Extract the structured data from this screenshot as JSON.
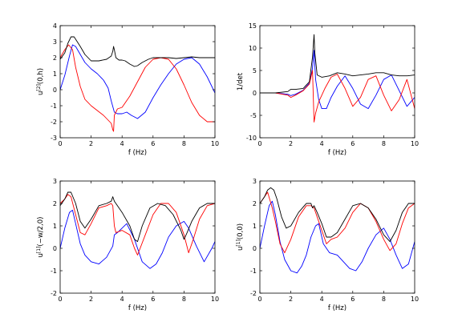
{
  "chart_data": [
    {
      "type": "line",
      "xlabel": "f (Hz)",
      "ylabel": "u",
      "ylabel_sup": "[2]",
      "ylabel_rest": "(0,h)",
      "xlim": [
        0,
        10
      ],
      "ylim": [
        -3,
        4
      ],
      "xticks": [
        "0",
        "2",
        "4",
        "6",
        "8",
        "10"
      ],
      "yticks": [
        "-3",
        "-2",
        "-1",
        "0",
        "1",
        "2",
        "3",
        "4"
      ],
      "grid": false,
      "series": [
        {
          "color": "#0000ff",
          "x": [
            0,
            0.3,
            0.6,
            0.8,
            1.0,
            1.3,
            1.6,
            2.0,
            2.4,
            2.8,
            3.1,
            3.3,
            3.5,
            3.7,
            4.0,
            4.3,
            4.6,
            5.0,
            5.5,
            6.0,
            6.5,
            7.0,
            7.5,
            8.0,
            8.5,
            9.0,
            9.5,
            10.0
          ],
          "y": [
            0,
            0.9,
            2.1,
            2.8,
            2.7,
            2.2,
            1.7,
            1.3,
            1.0,
            0.6,
            0.1,
            -0.7,
            -1.4,
            -1.5,
            -1.5,
            -1.4,
            -1.6,
            -1.8,
            -1.4,
            -0.5,
            0.3,
            1.0,
            1.6,
            1.9,
            2.0,
            1.6,
            0.8,
            -0.2
          ]
        },
        {
          "color": "#ff0000",
          "x": [
            0,
            0.3,
            0.55,
            0.8,
            1.0,
            1.3,
            1.6,
            2.0,
            2.4,
            2.8,
            3.1,
            3.3,
            3.4,
            3.45,
            3.5,
            3.7,
            4.0,
            4.5,
            5.0,
            5.5,
            6.0,
            6.5,
            7.0,
            7.5,
            8.0,
            8.5,
            9.0,
            9.5,
            10.0
          ],
          "y": [
            2.0,
            2.5,
            2.8,
            2.5,
            1.4,
            0.2,
            -0.6,
            -1.0,
            -1.3,
            -1.6,
            -1.9,
            -2.1,
            -2.5,
            -2.6,
            -1.6,
            -1.2,
            -1.1,
            -0.4,
            0.5,
            1.4,
            1.9,
            2.0,
            1.9,
            1.3,
            0.3,
            -0.8,
            -1.6,
            -2.0,
            -2.0
          ]
        },
        {
          "color": "#000000",
          "x": [
            0,
            0.3,
            0.5,
            0.7,
            0.9,
            1.1,
            1.3,
            1.6,
            2.0,
            2.5,
            3.0,
            3.3,
            3.4,
            3.45,
            3.5,
            3.6,
            3.8,
            4.0,
            4.2,
            4.5,
            4.8,
            5.0,
            5.3,
            5.7,
            6.0,
            6.5,
            7.0,
            7.5,
            8.0,
            8.5,
            9.0,
            9.5,
            10.0
          ],
          "y": [
            1.9,
            2.3,
            2.9,
            3.3,
            3.3,
            3.0,
            2.7,
            2.2,
            1.8,
            1.8,
            1.9,
            2.1,
            2.4,
            2.7,
            2.5,
            2.0,
            1.85,
            1.85,
            1.8,
            1.6,
            1.45,
            1.5,
            1.7,
            1.9,
            2.0,
            2.0,
            2.0,
            1.95,
            2.0,
            2.05,
            2.0,
            2.0,
            2.0
          ]
        }
      ]
    },
    {
      "type": "line",
      "xlabel": "f (Hz)",
      "ylabel": "1/det",
      "xlim": [
        0,
        10
      ],
      "ylim": [
        -10,
        15
      ],
      "xticks": [
        "0",
        "2",
        "4",
        "6",
        "8",
        "10"
      ],
      "yticks": [
        "-10",
        "-5",
        "0",
        "5",
        "10",
        "15"
      ],
      "grid": false,
      "series": [
        {
          "color": "#0000ff",
          "x": [
            0,
            1.0,
            1.8,
            2.0,
            2.3,
            2.8,
            3.2,
            3.4,
            3.5,
            3.6,
            3.8,
            4.0,
            4.3,
            4.6,
            5.0,
            5.5,
            6.0,
            6.5,
            7.0,
            7.5,
            8.0,
            8.5,
            9.0,
            9.5,
            10.0
          ],
          "y": [
            0,
            0,
            -0.3,
            -0.6,
            -0.3,
            0.6,
            2.2,
            5.5,
            9.5,
            3.0,
            -1.5,
            -3.5,
            -3.5,
            -1.0,
            1.5,
            3.8,
            1.0,
            -2.5,
            -3.5,
            -0.5,
            3.0,
            4.0,
            0.5,
            -3.0,
            -1.0
          ]
        },
        {
          "color": "#ff0000",
          "x": [
            0,
            1.0,
            1.8,
            2.0,
            2.3,
            2.8,
            3.2,
            3.4,
            3.5,
            3.6,
            3.8,
            4.2,
            4.6,
            5.0,
            5.5,
            6.0,
            6.5,
            7.0,
            7.5,
            8.0,
            8.5,
            9.0,
            9.5,
            10.0
          ],
          "y": [
            0,
            0,
            -0.5,
            -1.0,
            -0.5,
            0.5,
            2.0,
            5.0,
            -6.5,
            -4.5,
            -2.0,
            1.0,
            3.5,
            4.2,
            1.0,
            -3.0,
            -1.0,
            3.0,
            3.8,
            -0.5,
            -4.0,
            -1.5,
            3.0,
            -3.5
          ]
        },
        {
          "color": "#000000",
          "x": [
            0,
            1.0,
            1.8,
            2.0,
            2.3,
            2.8,
            3.2,
            3.4,
            3.5,
            3.55,
            3.7,
            4.0,
            4.5,
            5.0,
            5.5,
            6.0,
            6.5,
            7.0,
            7.5,
            8.0,
            8.5,
            9.0,
            9.5,
            10.0
          ],
          "y": [
            0,
            0,
            0.3,
            0.8,
            0.8,
            1.0,
            2.5,
            8.0,
            13.0,
            9.0,
            4.0,
            3.5,
            3.8,
            4.5,
            4.2,
            3.8,
            4.0,
            4.2,
            4.5,
            4.5,
            4.0,
            3.8,
            3.8,
            4.0
          ]
        }
      ]
    },
    {
      "type": "line",
      "xlabel": "f (Hz)",
      "ylabel": "u",
      "ylabel_sup": "[1]",
      "ylabel_rest": "(−w/2,0)",
      "xlim": [
        0,
        10
      ],
      "ylim": [
        -2,
        3
      ],
      "xticks": [
        "0",
        "2",
        "4",
        "6",
        "8",
        "10"
      ],
      "yticks": [
        "-2",
        "-1",
        "0",
        "1",
        "2",
        "3"
      ],
      "grid": false,
      "series": [
        {
          "color": "#0000ff",
          "x": [
            0,
            0.3,
            0.6,
            0.8,
            1.0,
            1.3,
            1.6,
            2.0,
            2.5,
            3.0,
            3.4,
            3.5,
            3.7,
            4.0,
            4.3,
            4.8,
            5.3,
            5.8,
            6.2,
            6.6,
            7.0,
            7.5,
            8.0,
            8.3,
            8.8,
            9.3,
            9.8,
            10.0
          ],
          "y": [
            0,
            0.9,
            1.6,
            1.7,
            1.1,
            0.2,
            -0.3,
            -0.6,
            -0.7,
            -0.4,
            0.1,
            0.6,
            0.7,
            0.9,
            1.1,
            0.4,
            -0.6,
            -0.9,
            -0.7,
            -0.2,
            0.5,
            1.0,
            1.2,
            0.9,
            0.1,
            -0.6,
            0.0,
            0.3
          ]
        },
        {
          "color": "#ff0000",
          "x": [
            0,
            0.3,
            0.5,
            0.7,
            1.0,
            1.3,
            1.6,
            2.0,
            2.5,
            3.0,
            3.3,
            3.4,
            3.5,
            3.6,
            4.0,
            4.5,
            4.8,
            5.0,
            5.5,
            6.0,
            6.5,
            7.0,
            7.5,
            8.0,
            8.3,
            8.6,
            9.0,
            9.5,
            10.0
          ],
          "y": [
            2.0,
            2.2,
            2.4,
            2.3,
            1.5,
            0.7,
            0.6,
            1.1,
            1.8,
            1.9,
            2.0,
            1.9,
            1.0,
            0.7,
            0.8,
            0.6,
            0.0,
            -0.3,
            0.6,
            1.5,
            2.0,
            2.0,
            1.6,
            0.6,
            -0.2,
            0.4,
            1.3,
            1.9,
            2.0
          ]
        },
        {
          "color": "#000000",
          "x": [
            0,
            0.3,
            0.5,
            0.7,
            1.0,
            1.3,
            1.6,
            2.0,
            2.5,
            3.0,
            3.3,
            3.4,
            3.5,
            3.6,
            4.0,
            4.5,
            4.8,
            5.0,
            5.3,
            5.8,
            6.3,
            6.8,
            7.3,
            7.8,
            8.0,
            8.2,
            8.5,
            9.0,
            9.5,
            10.0
          ],
          "y": [
            1.9,
            2.2,
            2.5,
            2.5,
            2.0,
            1.2,
            0.9,
            1.3,
            1.9,
            2.0,
            2.1,
            2.3,
            2.1,
            2.0,
            1.6,
            1.0,
            0.4,
            0.3,
            1.0,
            1.8,
            2.0,
            1.9,
            1.5,
            0.8,
            0.4,
            0.7,
            1.2,
            1.8,
            2.0,
            2.0
          ]
        }
      ]
    },
    {
      "type": "line",
      "xlabel": "f (Hz)",
      "ylabel": "u",
      "ylabel_sup": "[1]",
      "ylabel_rest": "(0,0)",
      "xlim": [
        0,
        10
      ],
      "ylim": [
        -2,
        3
      ],
      "xticks": [
        "0",
        "2",
        "4",
        "6",
        "8",
        "10"
      ],
      "yticks": [
        "-2",
        "-1",
        "0",
        "1",
        "2",
        "3"
      ],
      "grid": false,
      "series": [
        {
          "color": "#0000ff",
          "x": [
            0,
            0.3,
            0.6,
            0.8,
            1.0,
            1.3,
            1.6,
            2.0,
            2.4,
            2.7,
            3.0,
            3.3,
            3.6,
            3.8,
            4.1,
            4.5,
            5.0,
            5.4,
            5.8,
            6.2,
            6.6,
            7.0,
            7.5,
            8.0,
            8.4,
            8.8,
            9.2,
            9.6,
            10.0
          ],
          "y": [
            0,
            1.0,
            1.9,
            2.1,
            1.5,
            0.3,
            -0.5,
            -1.0,
            -1.1,
            -0.8,
            -0.3,
            0.5,
            1.0,
            1.1,
            0.2,
            -0.2,
            -0.3,
            -0.6,
            -0.9,
            -1.0,
            -0.6,
            0.0,
            0.6,
            0.9,
            0.4,
            -0.3,
            -0.9,
            -0.7,
            0.3
          ]
        },
        {
          "color": "#ff0000",
          "x": [
            0,
            0.3,
            0.5,
            0.8,
            1.0,
            1.3,
            1.6,
            2.0,
            2.5,
            3.0,
            3.3,
            3.5,
            3.7,
            4.0,
            4.3,
            4.6,
            5.0,
            5.5,
            6.0,
            6.5,
            7.0,
            7.5,
            8.0,
            8.4,
            8.8,
            9.2,
            9.6,
            10.0
          ],
          "y": [
            2.0,
            2.3,
            2.5,
            1.8,
            1.2,
            0.2,
            -0.2,
            0.4,
            1.4,
            1.9,
            1.9,
            1.8,
            1.4,
            0.8,
            0.2,
            0.4,
            0.5,
            0.9,
            1.6,
            2.0,
            1.8,
            1.2,
            0.4,
            -0.1,
            0.2,
            1.1,
            1.8,
            2.0
          ]
        },
        {
          "color": "#000000",
          "x": [
            0,
            0.3,
            0.5,
            0.7,
            0.9,
            1.1,
            1.4,
            1.7,
            2.0,
            2.5,
            3.0,
            3.3,
            3.4,
            3.5,
            3.7,
            4.0,
            4.3,
            4.6,
            5.0,
            5.5,
            6.0,
            6.5,
            7.0,
            7.5,
            8.0,
            8.4,
            8.8,
            9.2,
            9.6,
            10.0
          ],
          "y": [
            2.0,
            2.3,
            2.6,
            2.7,
            2.6,
            2.2,
            1.4,
            0.9,
            1.0,
            1.6,
            2.0,
            2.0,
            1.8,
            1.9,
            1.6,
            1.1,
            0.5,
            0.5,
            0.7,
            1.3,
            1.9,
            2.0,
            1.8,
            1.3,
            0.6,
            0.3,
            0.8,
            1.6,
            2.0,
            2.0
          ]
        }
      ]
    }
  ]
}
